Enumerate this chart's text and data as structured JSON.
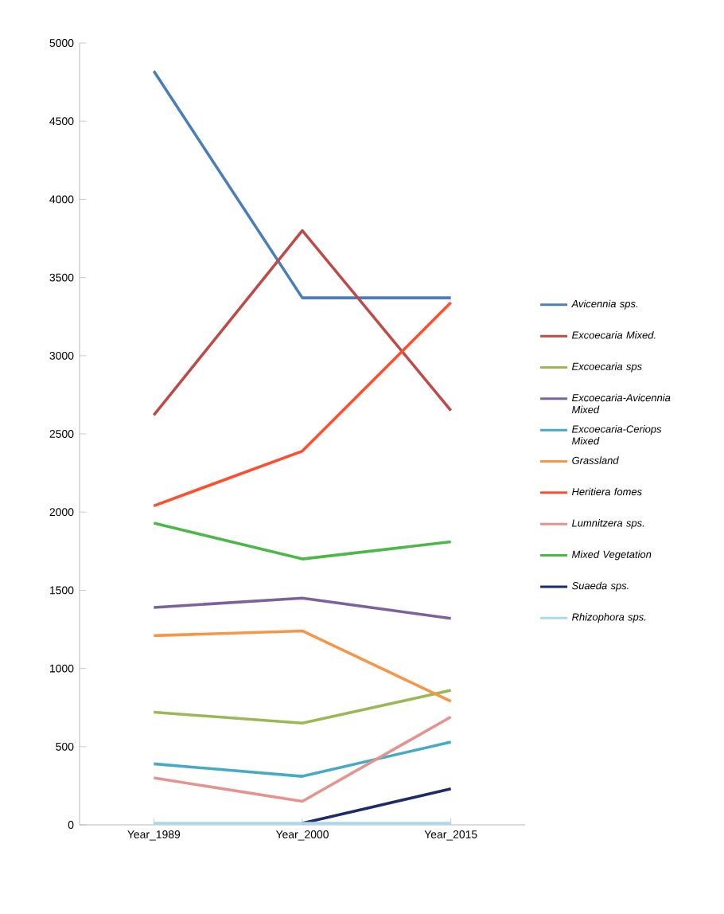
{
  "chart_data": {
    "type": "line",
    "categories": [
      "Year_1989",
      "Year_2000",
      "Year_2015"
    ],
    "ylim": [
      0,
      5000
    ],
    "yticks": [
      0,
      500,
      1000,
      1500,
      2000,
      2500,
      3000,
      3500,
      4000,
      4500,
      5000
    ],
    "grid": false,
    "legend": "right",
    "marker": "none",
    "line_style": "solid",
    "series": [
      {
        "name": "*Avicennia sps.*",
        "color": "#4a7ebb",
        "values": [
          4820,
          3370,
          3370
        ]
      },
      {
        "name": "*Excoecaria Mixed.*",
        "color": "#be4b48",
        "values": [
          2620,
          3800,
          2650
        ]
      },
      {
        "name": "*Excoecaria sps*",
        "color": "#98b954",
        "values": [
          720,
          650,
          860
        ]
      },
      {
        "name": "*Excoecaria-Avicennia Mixed*",
        "color": "#7d60a0",
        "values": [
          1390,
          1450,
          1320
        ]
      },
      {
        "name": "*Excoecaria-Ceriops Mixed*",
        "color": "#46aac5",
        "values": [
          390,
          310,
          530
        ]
      },
      {
        "name": "*Grassland*",
        "color": "#f79646",
        "values": [
          1210,
          1240,
          790
        ]
      },
      {
        "name": "*Heritiera fomes*",
        "color": "#ff4d2e",
        "values": [
          2040,
          2390,
          3340
        ]
      },
      {
        "name": "*Lumnitzera sps.*",
        "color": "#e4938f",
        "values": [
          300,
          150,
          690
        ]
      },
      {
        "name": "*Mixed Vegetation*",
        "color": "#4cb848",
        "values": [
          1930,
          1700,
          1810
        ]
      },
      {
        "name": "*Suaeda sps.*",
        "color": "#1f2a6b",
        "values": [
          null,
          10,
          230
        ]
      },
      {
        "name": "*Rhizophora sps.*",
        "color": "#a8d8ea",
        "values": [
          10,
          10,
          10
        ]
      }
    ]
  }
}
